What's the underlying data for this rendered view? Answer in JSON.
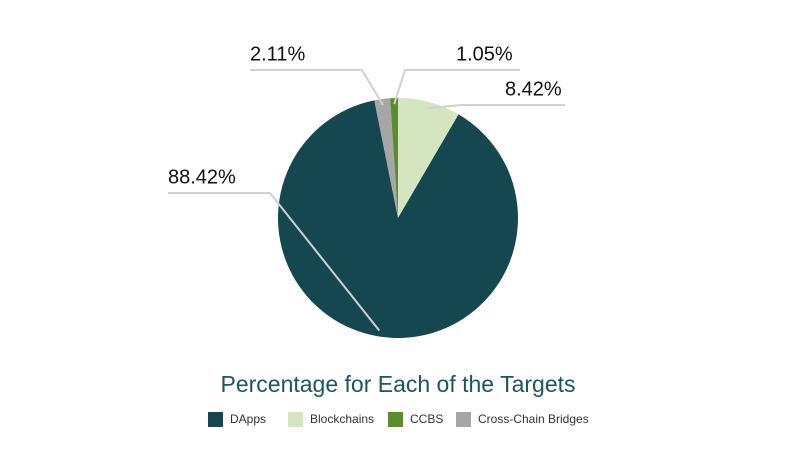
{
  "chart_data": {
    "type": "pie",
    "title": "Percentage for Each of the Targets",
    "categories": [
      "DApps",
      "Blockchains",
      "CCBS",
      "Cross-Chain Bridges"
    ],
    "values": [
      88.42,
      8.42,
      1.05,
      2.11
    ],
    "value_labels": [
      "88.42%",
      "8.42%",
      "1.05%",
      "2.11%"
    ],
    "colors": [
      "#14474f",
      "#d4e5c0",
      "#5b8d2f",
      "#a6a6a6"
    ],
    "legend": "bottom"
  }
}
